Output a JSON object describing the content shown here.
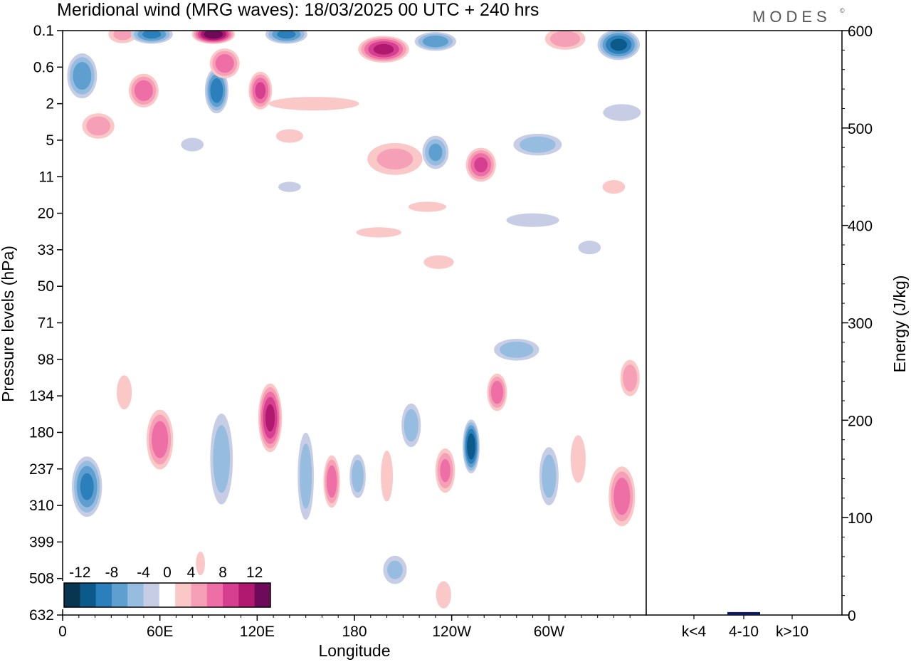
{
  "header": {
    "title": "Meridional wind (MRG waves):  18/03/2025  00 UTC  + 240 hrs",
    "brand": "MODES",
    "brand_mark": "©"
  },
  "chart_data": [
    {
      "type": "heatmap",
      "xlabel": "Longitude",
      "ylabel": "Pressure levels (hPa)",
      "x_ticks": [
        "0",
        "60E",
        "120E",
        "180",
        "120W",
        "60W"
      ],
      "x_tick_values": [
        0,
        60,
        120,
        180,
        240,
        300
      ],
      "x_range": [
        0,
        360
      ],
      "y_ticks": [
        "0.1",
        "0.6",
        "2",
        "5",
        "11",
        "20",
        "33",
        "50",
        "71",
        "98",
        "134",
        "180",
        "237",
        "310",
        "399",
        "508",
        "632"
      ],
      "colorbar": {
        "labels": [
          "-12",
          "-8",
          "-4",
          "0",
          "4",
          "8",
          "12"
        ],
        "label_values": [
          -12,
          -8,
          -4,
          0,
          4,
          8,
          12
        ],
        "bounds": [
          -14,
          -12,
          -10,
          -8,
          -6,
          -4,
          -2,
          2,
          4,
          6,
          8,
          10,
          12,
          14
        ],
        "colors": [
          "#08354f",
          "#0b5a8a",
          "#2b7fbb",
          "#5f9fcf",
          "#96bde0",
          "#c8cde6",
          "#ffffff",
          "#fbc8c8",
          "#f6a0b8",
          "#ee6fa6",
          "#d63f8f",
          "#b0196f",
          "#6e0a5a"
        ]
      },
      "blobs": [
        {
          "lon": 12,
          "lev": 0.8,
          "w": 18,
          "h": 1.2,
          "v": -7
        },
        {
          "lon": 22,
          "lev": 3.5,
          "w": 20,
          "h": 0.7,
          "v": 5
        },
        {
          "lon": 37,
          "lev": 0.12,
          "w": 18,
          "h": 0.5,
          "v": 4
        },
        {
          "lon": 50,
          "lev": 1.3,
          "w": 18,
          "h": 0.9,
          "v": 7
        },
        {
          "lon": 55,
          "lev": 0.12,
          "w": 25,
          "h": 0.5,
          "v": -8
        },
        {
          "lon": 93,
          "lev": 0.12,
          "w": 25,
          "h": 0.5,
          "v": 13
        },
        {
          "lon": 95,
          "lev": 1.3,
          "w": 14,
          "h": 1.2,
          "v": -9
        },
        {
          "lon": 100,
          "lev": 0.5,
          "w": 18,
          "h": 0.8,
          "v": 7
        },
        {
          "lon": 122,
          "lev": 1.3,
          "w": 14,
          "h": 1.0,
          "v": 8
        },
        {
          "lon": 138,
          "lev": 0.12,
          "w": 25,
          "h": 0.5,
          "v": -8
        },
        {
          "lon": 155,
          "lev": 2.0,
          "w": 60,
          "h": 0.4,
          "v": 3
        },
        {
          "lon": 198,
          "lev": 0.25,
          "w": 30,
          "h": 0.7,
          "v": 10
        },
        {
          "lon": 205,
          "lev": 7.5,
          "w": 35,
          "h": 0.9,
          "v": 4
        },
        {
          "lon": 230,
          "lev": 0.17,
          "w": 25,
          "h": 0.5,
          "v": -7
        },
        {
          "lon": 230,
          "lev": 6.5,
          "w": 16,
          "h": 0.9,
          "v": -6
        },
        {
          "lon": 258,
          "lev": 8.5,
          "w": 18,
          "h": 0.9,
          "v": 8
        },
        {
          "lon": 293,
          "lev": 5.5,
          "w": 30,
          "h": 0.6,
          "v": -5
        },
        {
          "lon": 310,
          "lev": 0.15,
          "w": 25,
          "h": 0.6,
          "v": 5
        },
        {
          "lon": 343,
          "lev": 0.2,
          "w": 25,
          "h": 0.8,
          "v": -10
        },
        {
          "lon": 345,
          "lev": 2.5,
          "w": 25,
          "h": 0.5,
          "v": -3
        },
        {
          "lon": 80,
          "lev": 5.5,
          "w": 15,
          "h": 0.4,
          "v": -3
        },
        {
          "lon": 140,
          "lev": 4.5,
          "w": 18,
          "h": 0.4,
          "v": 3
        },
        {
          "lon": 140,
          "lev": 13,
          "w": 15,
          "h": 0.3,
          "v": -3
        },
        {
          "lon": 195,
          "lev": 26,
          "w": 30,
          "h": 0.3,
          "v": 3
        },
        {
          "lon": 225,
          "lev": 18,
          "w": 25,
          "h": 0.3,
          "v": 3
        },
        {
          "lon": 290,
          "lev": 22,
          "w": 35,
          "h": 0.4,
          "v": -3
        },
        {
          "lon": 232,
          "lev": 38,
          "w": 20,
          "h": 0.4,
          "v": 3
        },
        {
          "lon": 340,
          "lev": 13,
          "w": 15,
          "h": 0.4,
          "v": 3
        },
        {
          "lon": 325,
          "lev": 32,
          "w": 15,
          "h": 0.4,
          "v": -3
        },
        {
          "lon": 15,
          "lev": 270,
          "w": 18,
          "h": 1.6,
          "v": -8
        },
        {
          "lon": 38,
          "lev": 130,
          "w": 10,
          "h": 1.0,
          "v": 3
        },
        {
          "lon": 60,
          "lev": 190,
          "w": 16,
          "h": 1.6,
          "v": 7
        },
        {
          "lon": 85,
          "lev": 460,
          "w": 6,
          "h": 0.7,
          "v": 3
        },
        {
          "lon": 98,
          "lev": 220,
          "w": 14,
          "h": 2.5,
          "v": -5
        },
        {
          "lon": 128,
          "lev": 160,
          "w": 14,
          "h": 1.8,
          "v": 10
        },
        {
          "lon": 150,
          "lev": 250,
          "w": 10,
          "h": 2.4,
          "v": -5
        },
        {
          "lon": 166,
          "lev": 260,
          "w": 10,
          "h": 1.4,
          "v": 7
        },
        {
          "lon": 182,
          "lev": 250,
          "w": 10,
          "h": 1.2,
          "v": -5
        },
        {
          "lon": 200,
          "lev": 250,
          "w": 8,
          "h": 1.5,
          "v": 3
        },
        {
          "lon": 215,
          "lev": 170,
          "w": 12,
          "h": 1.2,
          "v": -5
        },
        {
          "lon": 236,
          "lev": 240,
          "w": 12,
          "h": 1.2,
          "v": 6
        },
        {
          "lon": 252,
          "lev": 200,
          "w": 10,
          "h": 1.4,
          "v": -11
        },
        {
          "lon": 268,
          "lev": 130,
          "w": 12,
          "h": 1.0,
          "v": 7
        },
        {
          "lon": 280,
          "lev": 90,
          "w": 28,
          "h": 0.6,
          "v": -5
        },
        {
          "lon": 300,
          "lev": 250,
          "w": 12,
          "h": 1.6,
          "v": -5
        },
        {
          "lon": 318,
          "lev": 220,
          "w": 10,
          "h": 1.4,
          "v": 3
        },
        {
          "lon": 345,
          "lev": 290,
          "w": 16,
          "h": 1.6,
          "v": 7
        },
        {
          "lon": 350,
          "lev": 115,
          "w": 12,
          "h": 1.0,
          "v": 5
        },
        {
          "lon": 205,
          "lev": 480,
          "w": 15,
          "h": 0.8,
          "v": -4
        },
        {
          "lon": 235,
          "lev": 560,
          "w": 10,
          "h": 0.8,
          "v": 3
        }
      ]
    },
    {
      "type": "bar",
      "ylabel": "Energy (J/kg)",
      "categories": [
        "k<4",
        "4-10",
        "k>10"
      ],
      "values": [
        0,
        3,
        0
      ],
      "ylim": [
        0,
        600
      ],
      "y_ticks": [
        0,
        100,
        200,
        300,
        400,
        500,
        600
      ],
      "bar_color": "#0b1a5c"
    }
  ]
}
